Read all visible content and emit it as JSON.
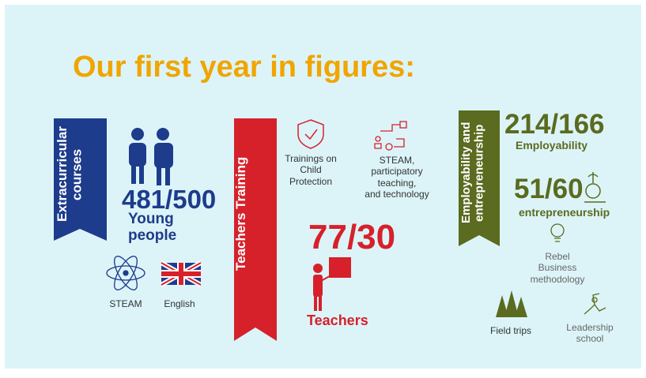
{
  "title": "Our first year in figures:",
  "sections": [
    {
      "banner": [
        "Extracurricular",
        "courses"
      ],
      "figure": "481/500",
      "label": [
        "Young",
        "people"
      ],
      "items": [
        {
          "lines": [
            "STEAM"
          ]
        },
        {
          "lines": [
            "English"
          ]
        }
      ]
    },
    {
      "banner": [
        "Teachers Training"
      ],
      "figure": "77/30",
      "label": [
        "Teachers"
      ],
      "items": [
        {
          "lines": [
            "Trainings on",
            "Child",
            "Protection"
          ]
        },
        {
          "lines": [
            "STEAM,",
            "participatory",
            "teaching,",
            "and technology"
          ]
        }
      ]
    },
    {
      "banner": [
        "Employability and",
        "entrepreneurship"
      ],
      "figures": [
        {
          "figure": "214/166",
          "label": "Employability"
        },
        {
          "figure": "51/60",
          "label": "entrepreneurship"
        }
      ],
      "items": [
        {
          "lines": [
            "Rebel",
            "Business",
            "methodology"
          ]
        },
        {
          "lines": [
            "Field trips"
          ]
        },
        {
          "lines": [
            "Leadership",
            "school"
          ]
        }
      ]
    }
  ]
}
